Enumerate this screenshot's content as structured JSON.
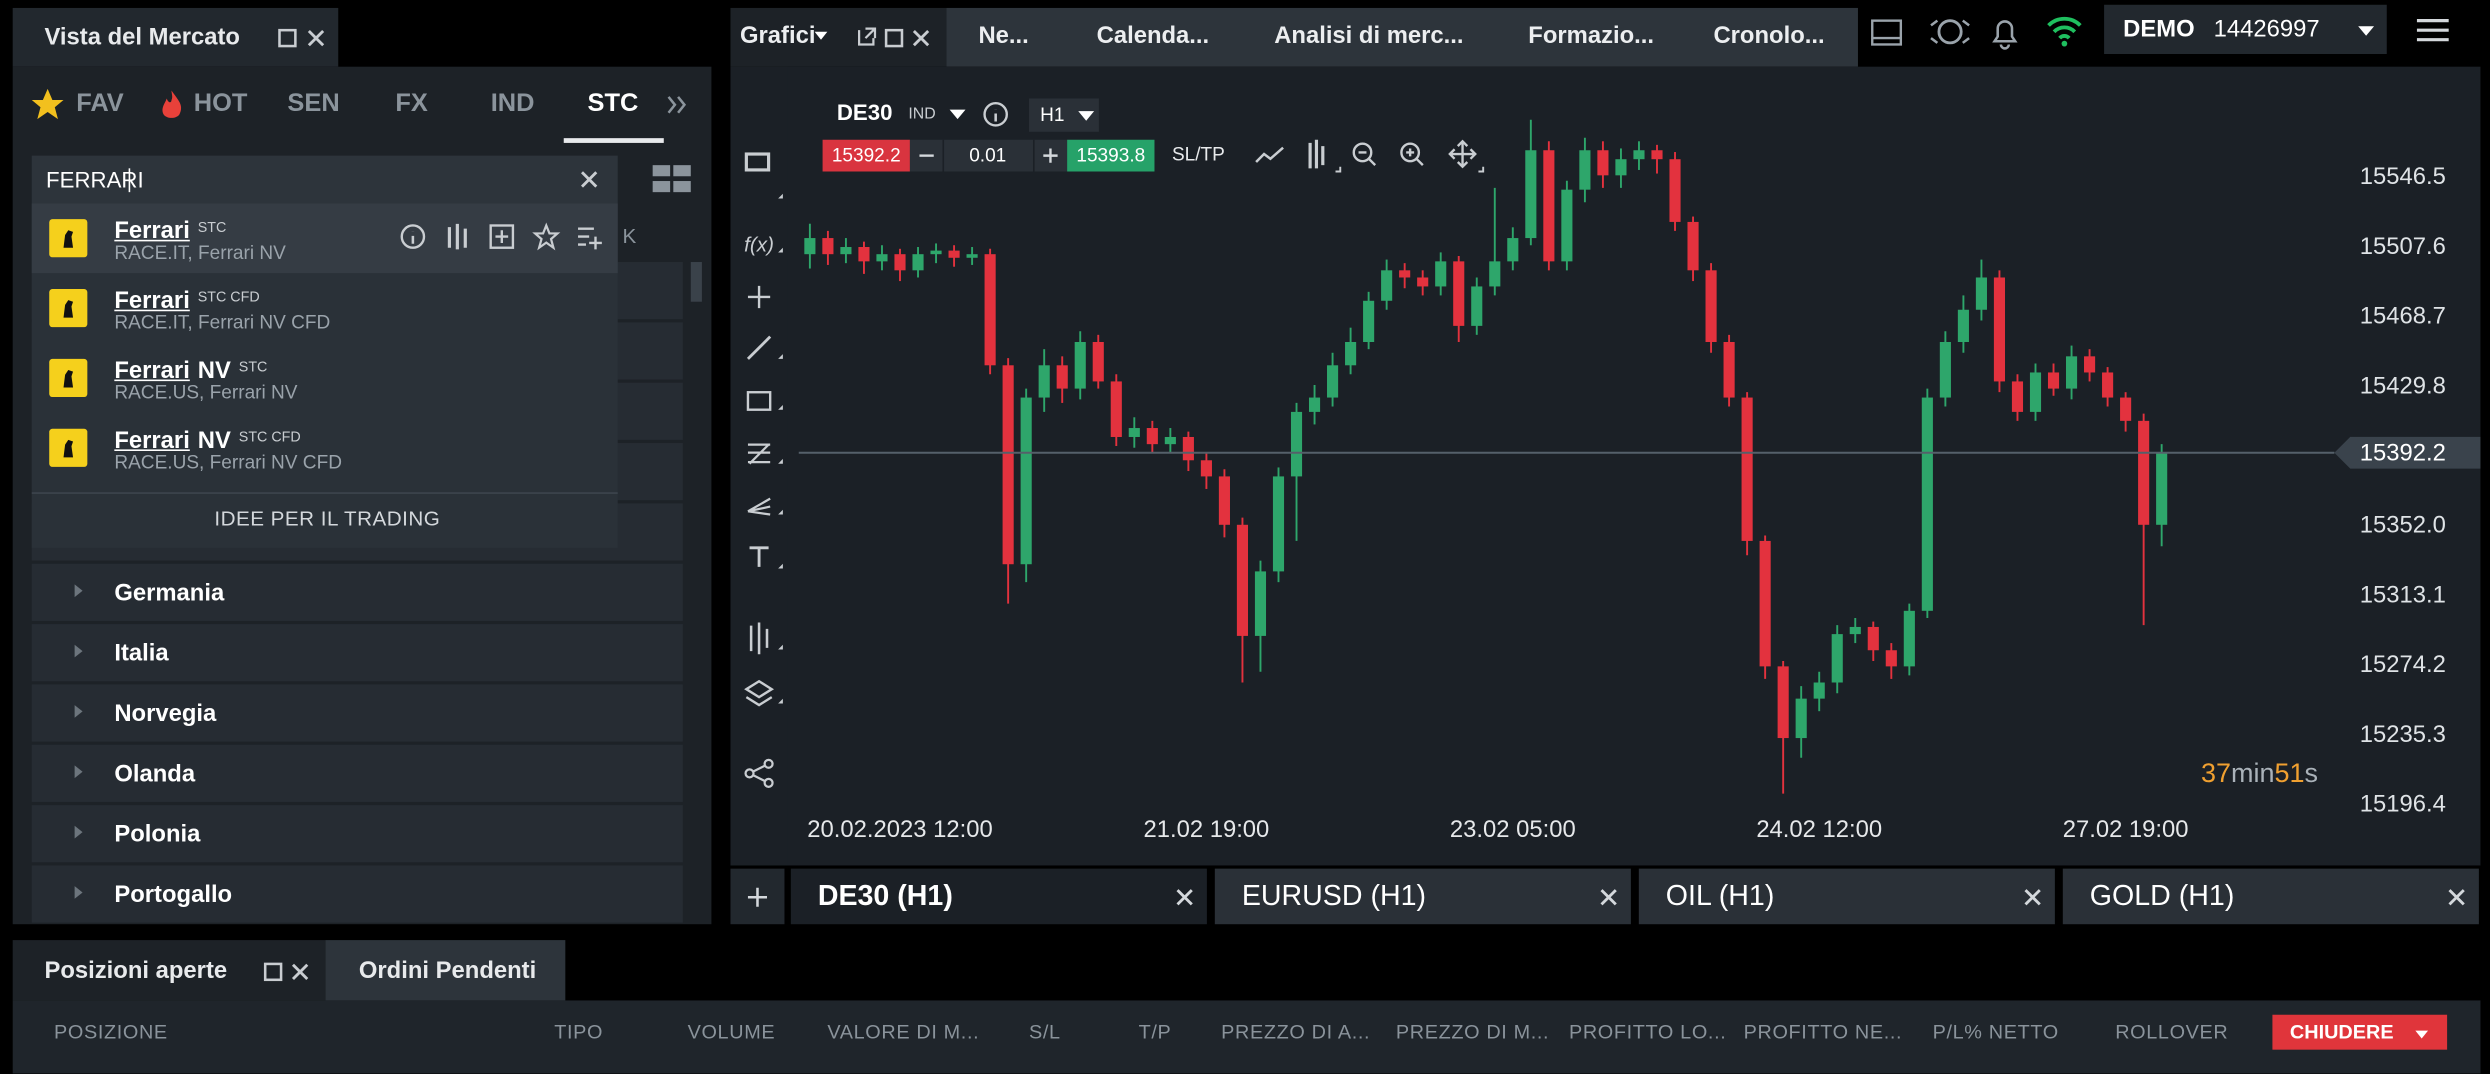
{
  "market_watch": {
    "title": "Vista del Mercato",
    "tabs": [
      "FAV",
      "HOT",
      "SEN",
      "FX",
      "IND",
      "STC"
    ],
    "search": "FERRARI",
    "partial_header": "K",
    "results": [
      {
        "match": "Ferrari",
        "tag": "STC",
        "detail": "RACE.IT, Ferrari NV"
      },
      {
        "match": "Ferrari",
        "tag": "STC CFD",
        "detail": "RACE.IT, Ferrari NV CFD"
      },
      {
        "match": "Ferrari",
        "rest": "NV",
        "tag": "STC",
        "detail": "RACE.US, Ferrari NV"
      },
      {
        "match": "Ferrari",
        "rest": "NV",
        "tag": "STC CFD",
        "detail": "RACE.US, Ferrari NV CFD"
      }
    ],
    "ideas": "IDEE PER IL TRADING",
    "countries": [
      "Germania",
      "Italia",
      "Norvegia",
      "Olanda",
      "Polonia",
      "Portogallo"
    ]
  },
  "top_bar": {
    "tabs": [
      "Grafici",
      "Ne...",
      "Calenda...",
      "Analisi di merc...",
      "Formazio...",
      "Cronolo..."
    ],
    "account_mode": "DEMO",
    "account_number": "14426997"
  },
  "chart_toolbar": {
    "symbol": "DE30",
    "group": "IND",
    "timeframe": "H1",
    "bid": 15392.2,
    "volume": 0.01,
    "ask": 15393.8,
    "sltp": "SL/TP",
    "fx": "f(x)"
  },
  "chart_data": {
    "type": "candlestick",
    "categories": [
      null,
      null,
      null,
      null,
      null,
      "20.02.2023 12:00",
      null,
      null,
      null,
      null,
      null,
      null,
      null,
      null,
      null,
      null,
      null,
      null,
      null,
      null,
      null,
      null,
      "21.02 19:00",
      null,
      null,
      null,
      null,
      null,
      null,
      null,
      null,
      null,
      null,
      null,
      null,
      null,
      null,
      null,
      null,
      "23.02 05:00",
      null,
      null,
      null,
      null,
      null,
      null,
      null,
      null,
      null,
      null,
      null,
      null,
      null,
      null,
      null,
      null,
      "24.02 12:00",
      null,
      null,
      null,
      null,
      null,
      null,
      null,
      null,
      null,
      null,
      null,
      null,
      null,
      null,
      null,
      null,
      "27.02 19:00",
      null,
      null
    ],
    "open": [
      15503,
      15512,
      15503,
      15507,
      15499,
      15503,
      15494,
      15503,
      15505,
      15501,
      15503,
      15441,
      15330,
      15423,
      15441,
      15428,
      15454,
      15432,
      15401,
      15406,
      15397,
      15401,
      15388,
      15379,
      15352,
      15290,
      15326,
      15379,
      15415,
      15423,
      15441,
      15454,
      15477,
      15494,
      15490,
      15485,
      15499,
      15463,
      15485,
      15499,
      15512,
      15561,
      15499,
      15539,
      15561,
      15547,
      15556,
      15561,
      15556,
      15521,
      15494,
      15454,
      15423,
      15343,
      15273,
      15233,
      15255,
      15264,
      15291,
      15295,
      15282,
      15273,
      15304,
      15423,
      15454,
      15472,
      15490,
      15432,
      15415,
      15437,
      15428,
      15446,
      15437,
      15423,
      15410,
      15352
    ],
    "high": [
      15520,
      15516,
      15512,
      15510,
      15508,
      15506,
      15507,
      15509,
      15508,
      15507,
      15506,
      15445,
      15428,
      15450,
      15446,
      15460,
      15458,
      15436,
      15412,
      15410,
      15406,
      15404,
      15392,
      15383,
      15356,
      15332,
      15384,
      15420,
      15430,
      15448,
      15462,
      15482,
      15500,
      15498,
      15494,
      15504,
      15502,
      15490,
      15540,
      15518,
      15578,
      15566,
      15544,
      15568,
      15566,
      15562,
      15566,
      15564,
      15560,
      15524,
      15498,
      15458,
      15426,
      15346,
      15276,
      15262,
      15270,
      15296,
      15300,
      15298,
      15286,
      15308,
      15428,
      15460,
      15480,
      15500,
      15494,
      15436,
      15442,
      15442,
      15452,
      15450,
      15440,
      15426,
      15414,
      15397
    ],
    "low": [
      15495,
      15497,
      15498,
      15492,
      15494,
      15488,
      15490,
      15498,
      15496,
      15497,
      15436,
      15308,
      15320,
      15415,
      15420,
      15422,
      15428,
      15396,
      15395,
      15392,
      15392,
      15382,
      15372,
      15345,
      15264,
      15270,
      15320,
      15343,
      15408,
      15418,
      15436,
      15450,
      15472,
      15484,
      15480,
      15480,
      15454,
      15458,
      15480,
      15494,
      15508,
      15494,
      15494,
      15532,
      15540,
      15540,
      15550,
      15548,
      15516,
      15488,
      15448,
      15418,
      15335,
      15266,
      15202,
      15222,
      15248,
      15258,
      15286,
      15276,
      15266,
      15268,
      15300,
      15418,
      15448,
      15466,
      15426,
      15410,
      15410,
      15424,
      15422,
      15432,
      15418,
      15404,
      15296,
      15340
    ],
    "close": [
      15512,
      15503,
      15507,
      15499,
      15503,
      15494,
      15503,
      15505,
      15501,
      15503,
      15441,
      15330,
      15423,
      15441,
      15428,
      15454,
      15432,
      15401,
      15406,
      15397,
      15401,
      15388,
      15379,
      15352,
      15290,
      15326,
      15379,
      15415,
      15423,
      15441,
      15454,
      15477,
      15494,
      15490,
      15485,
      15499,
      15463,
      15485,
      15499,
      15512,
      15561,
      15499,
      15539,
      15561,
      15547,
      15556,
      15561,
      15556,
      15521,
      15494,
      15454,
      15423,
      15343,
      15273,
      15233,
      15255,
      15264,
      15291,
      15295,
      15282,
      15273,
      15304,
      15423,
      15454,
      15472,
      15490,
      15432,
      15415,
      15437,
      15428,
      15446,
      15437,
      15423,
      15410,
      15352,
      15392.2
    ],
    "up_color": "#2ea66b",
    "down_color": "#e3323e",
    "ylim": [
      15190,
      15600
    ],
    "yticks": [
      15546.5,
      15507.6,
      15468.7,
      15429.8,
      {
        "value": 15352,
        "label": "15352.0"
      },
      15313.1,
      15274.2,
      15235.3,
      15196.4
    ],
    "grid": false,
    "current_price": 15392.2,
    "countdown": {
      "minutes": 37,
      "minutes_unit": "min",
      "seconds": 51,
      "seconds_unit": "s"
    }
  },
  "chart_tabs": [
    "DE30 (H1)",
    "EURUSD (H1)",
    "OIL (H1)",
    "GOLD (H1)"
  ],
  "positions": {
    "title": "Posizioni aperte",
    "tab": "Ordini Pendenti",
    "columns": [
      "POSIZIONE",
      "TIPO",
      "VOLUME",
      "VALORE DI M...",
      "S/L",
      "T/P",
      "PREZZO DI A...",
      "PREZZO DI M...",
      "PROFITTO LO...",
      "PROFITTO NE...",
      "P/L% NETTO",
      "ROLLOVER"
    ],
    "close_button": "CHIUDERE"
  }
}
